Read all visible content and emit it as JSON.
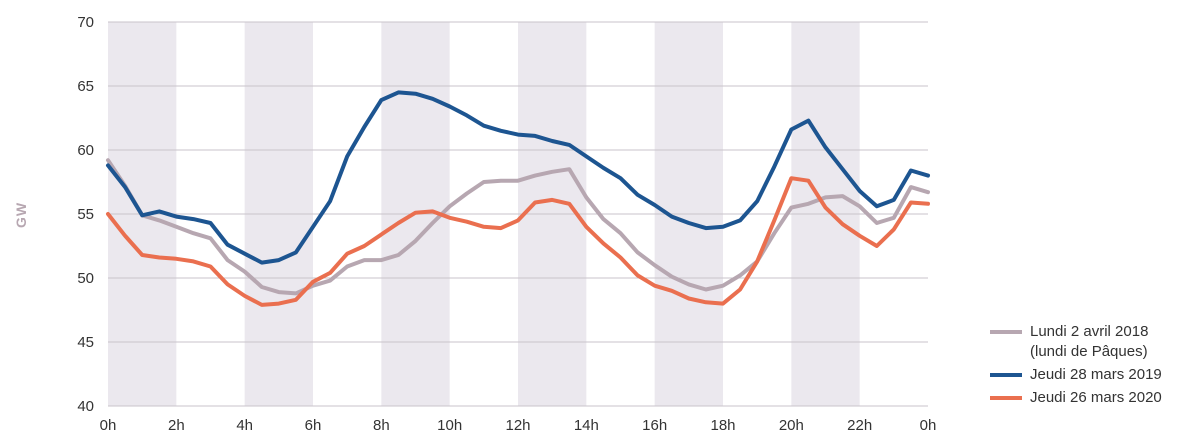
{
  "chart_data": {
    "type": "line",
    "title": "",
    "xlabel": "",
    "ylabel": "GW",
    "ylim": [
      40,
      70
    ],
    "yticks": [
      40,
      45,
      50,
      55,
      60,
      65,
      70
    ],
    "xlim": [
      0,
      24
    ],
    "xticks": [
      0,
      2,
      4,
      6,
      8,
      10,
      12,
      14,
      16,
      18,
      20,
      22,
      24
    ],
    "xtick_labels": [
      "0h",
      "2h",
      "4h",
      "6h",
      "8h",
      "10h",
      "12h",
      "14h",
      "16h",
      "18h",
      "20h",
      "22h",
      "0h"
    ],
    "grid": "horizontal",
    "shaded_bands": [
      [
        0,
        2
      ],
      [
        4,
        6
      ],
      [
        8,
        10
      ],
      [
        12,
        14
      ],
      [
        16,
        18
      ],
      [
        20,
        22
      ]
    ],
    "band_color": "#ebe8ee",
    "legend_position": "bottom-right",
    "x": [
      0,
      0.5,
      1,
      1.5,
      2,
      2.5,
      3,
      3.5,
      4,
      4.5,
      5,
      5.5,
      6,
      6.5,
      7,
      7.5,
      8,
      8.5,
      9,
      9.5,
      10,
      10.5,
      11,
      11.5,
      12,
      12.5,
      13,
      13.5,
      14,
      14.5,
      15,
      15.5,
      16,
      16.5,
      17,
      17.5,
      18,
      18.5,
      19,
      19.5,
      20,
      20.5,
      21,
      21.5,
      22,
      22.5,
      23,
      23.5,
      24
    ],
    "series": [
      {
        "name": "Lundi 2 avril 2018\n(lundi de Pâques)",
        "color": "#b7a7b1",
        "values": [
          59.2,
          57.2,
          54.9,
          54.5,
          54.0,
          53.5,
          53.1,
          51.4,
          50.5,
          49.3,
          48.9,
          48.8,
          49.4,
          49.8,
          50.9,
          51.4,
          51.4,
          51.8,
          52.9,
          54.3,
          55.6,
          56.6,
          57.5,
          57.6,
          57.6,
          58.0,
          58.3,
          58.5,
          56.3,
          54.6,
          53.5,
          52.0,
          51.0,
          50.1,
          49.5,
          49.1,
          49.4,
          50.2,
          51.3,
          53.5,
          55.5,
          55.8,
          56.3,
          56.4,
          55.6,
          54.3,
          54.7,
          57.1,
          56.7
        ]
      },
      {
        "name": "Jeudi 28 mars 2019",
        "color": "#1d5591",
        "values": [
          58.8,
          57.1,
          54.9,
          55.2,
          54.8,
          54.6,
          54.3,
          52.6,
          51.9,
          51.2,
          51.4,
          52.0,
          54.0,
          56.0,
          59.5,
          61.8,
          63.9,
          64.5,
          64.4,
          64.0,
          63.4,
          62.7,
          61.9,
          61.5,
          61.2,
          61.1,
          60.7,
          60.4,
          59.5,
          58.6,
          57.8,
          56.5,
          55.7,
          54.8,
          54.3,
          53.9,
          54.0,
          54.5,
          56.0,
          58.7,
          61.6,
          62.3,
          60.2,
          58.5,
          56.8,
          55.6,
          56.1,
          58.4,
          58.0
        ]
      },
      {
        "name": "Jeudi 26 mars 2020",
        "color": "#ea6f4f",
        "values": [
          55.0,
          53.3,
          51.8,
          51.6,
          51.5,
          51.3,
          50.9,
          49.5,
          48.6,
          47.9,
          48.0,
          48.3,
          49.7,
          50.4,
          51.9,
          52.5,
          53.4,
          54.3,
          55.1,
          55.2,
          54.7,
          54.4,
          54.0,
          53.9,
          54.5,
          55.9,
          56.1,
          55.8,
          54.0,
          52.7,
          51.6,
          50.2,
          49.4,
          49.0,
          48.4,
          48.1,
          48.0,
          49.1,
          51.3,
          54.5,
          57.8,
          57.6,
          55.5,
          54.2,
          53.3,
          52.5,
          53.8,
          55.9,
          55.8
        ]
      }
    ]
  }
}
